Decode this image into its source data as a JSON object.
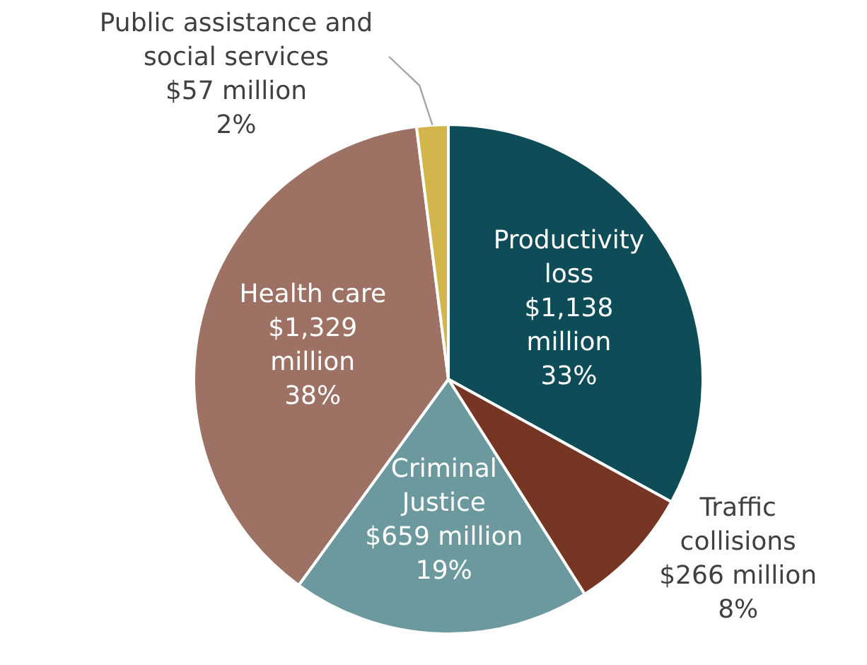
{
  "chart_data": {
    "type": "pie",
    "categories": [
      "Productivity loss",
      "Traffic collisions",
      "Criminal Justice",
      "Health care",
      "Public assistance and social services"
    ],
    "values": [
      33,
      8,
      19,
      38,
      2
    ],
    "colors": [
      "#0e4c58",
      "#773523",
      "#6b999e",
      "#9d7164",
      "#d2b64c"
    ],
    "value_labels": [
      "$1,138 million\n33%",
      "$266 million\n8%",
      "$659  million\n19%",
      "$1,329 million\n38%",
      "$57 million\n2%"
    ]
  }
}
